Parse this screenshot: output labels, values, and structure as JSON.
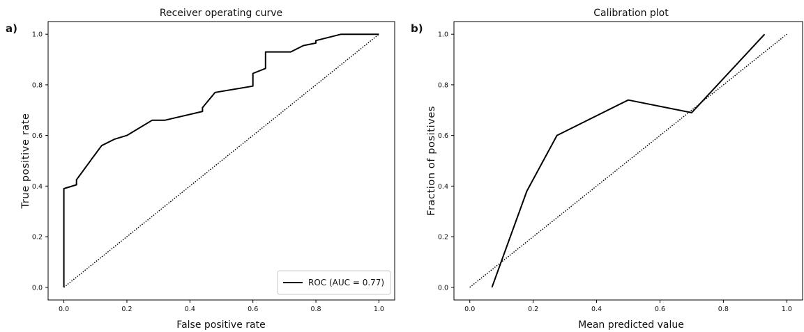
{
  "chart_data": [
    {
      "panel_label": "a)",
      "type": "line",
      "title": "Receiver operating curve",
      "xlabel": "False positive rate",
      "ylabel": "True positive rate",
      "xlim": [
        -0.05,
        1.05
      ],
      "ylim": [
        -0.05,
        1.05
      ],
      "xticks": [
        "0.0",
        "0.2",
        "0.4",
        "0.6",
        "0.8",
        "1.0"
      ],
      "yticks": [
        "0.0",
        "0.2",
        "0.4",
        "0.6",
        "0.8",
        "1.0"
      ],
      "grid": false,
      "legend": {
        "position": "lower right",
        "entries": [
          "ROC (AUC = 0.77)"
        ]
      },
      "series": [
        {
          "name": "ROC (AUC = 0.77)",
          "style": "solid",
          "color": "#000000",
          "x": [
            0.0,
            0.0,
            0.04,
            0.04,
            0.09,
            0.12,
            0.16,
            0.2,
            0.28,
            0.32,
            0.44,
            0.44,
            0.48,
            0.6,
            0.6,
            0.64,
            0.64,
            0.72,
            0.76,
            0.8,
            0.8,
            0.88,
            1.0
          ],
          "y": [
            0.0,
            0.39,
            0.405,
            0.425,
            0.51,
            0.56,
            0.585,
            0.6,
            0.66,
            0.66,
            0.695,
            0.71,
            0.77,
            0.795,
            0.845,
            0.865,
            0.93,
            0.93,
            0.955,
            0.965,
            0.975,
            1.0,
            1.0
          ]
        },
        {
          "style": "dotted",
          "color": "#000000",
          "x": [
            0.0,
            1.0
          ],
          "y": [
            0.0,
            1.0
          ]
        }
      ]
    },
    {
      "panel_label": "b)",
      "type": "line",
      "title": "Calibration plot",
      "xlabel": "Mean predicted value",
      "ylabel": "Fraction of positives",
      "xlim": [
        -0.05,
        1.05
      ],
      "ylim": [
        -0.05,
        1.05
      ],
      "xticks": [
        "0.0",
        "0.2",
        "0.4",
        "0.6",
        "0.8",
        "1.0"
      ],
      "yticks": [
        "0.0",
        "0.2",
        "0.4",
        "0.6",
        "0.8",
        "1.0"
      ],
      "grid": false,
      "series": [
        {
          "style": "solid",
          "color": "#000000",
          "x": [
            0.07,
            0.18,
            0.275,
            0.5,
            0.7,
            0.93
          ],
          "y": [
            0.0,
            0.38,
            0.6,
            0.74,
            0.69,
            1.0
          ]
        },
        {
          "style": "dotted",
          "color": "#000000",
          "x": [
            0.0,
            1.0
          ],
          "y": [
            0.0,
            1.0
          ]
        }
      ]
    }
  ]
}
